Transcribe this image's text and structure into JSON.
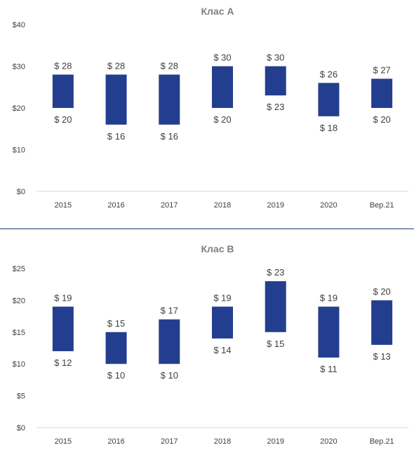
{
  "charts": [
    {
      "type": "bar",
      "title": "Клас A",
      "categories": [
        "2015",
        "2016",
        "2017",
        "2018",
        "2019",
        "2020",
        "Вер.21"
      ],
      "series": [
        {
          "low": [
            20,
            16,
            16,
            20,
            23,
            18,
            20
          ],
          "high": [
            28,
            28,
            28,
            30,
            30,
            26,
            27
          ]
        }
      ],
      "yticks": [
        "$0",
        "$10",
        "$20",
        "$30",
        "$40"
      ],
      "ylim": [
        0,
        40
      ],
      "high_labels": [
        "$ 28",
        "$ 28",
        "$ 28",
        "$ 30",
        "$ 30",
        "$ 26",
        "$ 27"
      ],
      "low_labels": [
        "$ 20",
        "$ 16",
        "$ 16",
        "$ 20",
        "$ 23",
        "$ 18",
        "$ 20"
      ],
      "bar_color": "#243e8f"
    },
    {
      "type": "bar",
      "title": "Клас B",
      "categories": [
        "2015",
        "2016",
        "2017",
        "2018",
        "2019",
        "2020",
        "Вер.21"
      ],
      "series": [
        {
          "low": [
            12,
            10,
            10,
            14,
            15,
            11,
            13
          ],
          "high": [
            19,
            15,
            17,
            19,
            23,
            19,
            20
          ]
        }
      ],
      "yticks": [
        "$0",
        "$5",
        "$10",
        "$15",
        "$20",
        "$25"
      ],
      "ylim": [
        0,
        25
      ],
      "high_labels": [
        "$ 19",
        "$ 15",
        "$ 17",
        "$ 19",
        "$ 23",
        "$ 19",
        "$ 20"
      ],
      "low_labels": [
        "$ 12",
        "$ 10",
        "$ 10",
        "$ 14",
        "$ 15",
        "$ 11",
        "$ 13"
      ],
      "bar_color": "#243e8f"
    }
  ]
}
